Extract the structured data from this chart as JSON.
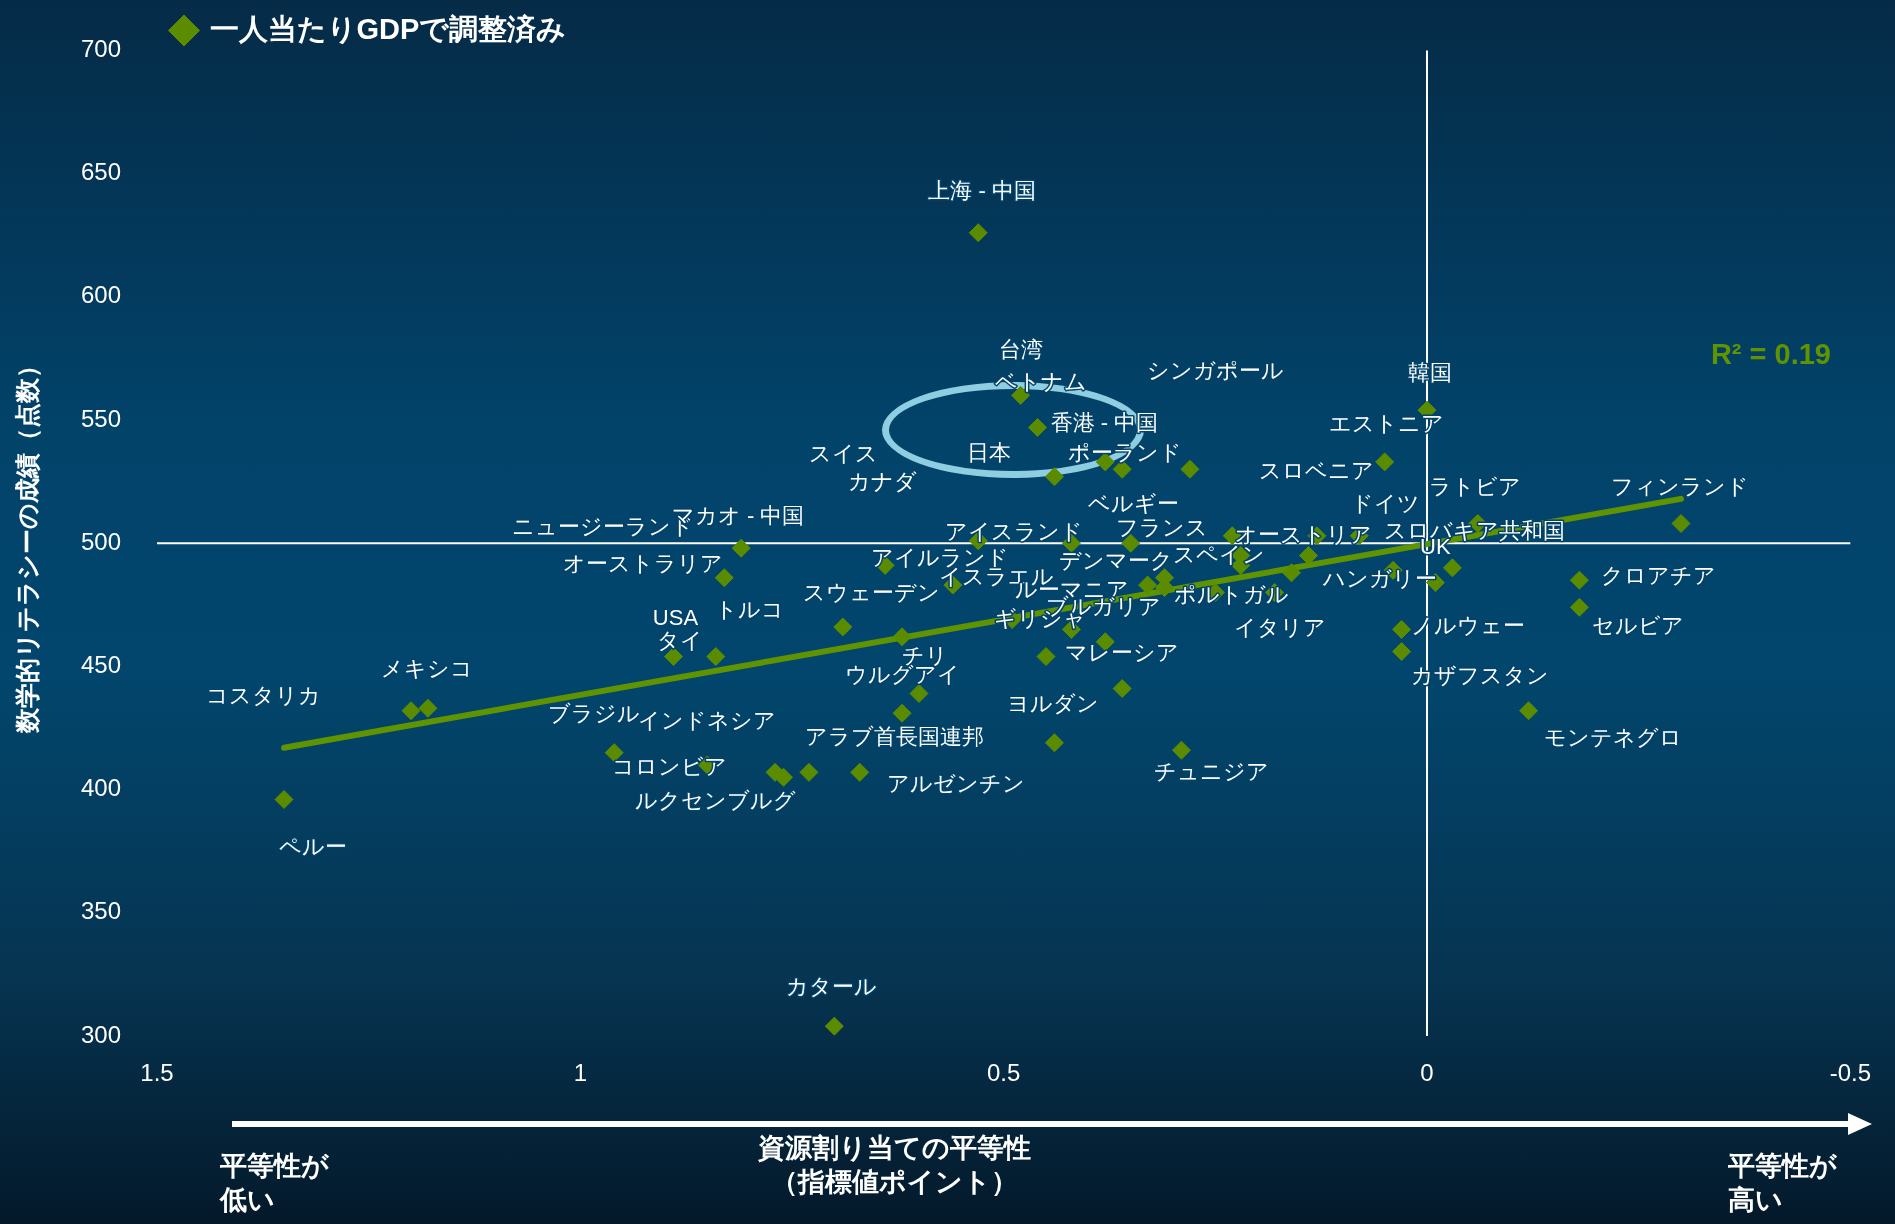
{
  "chart_data": {
    "type": "scatter",
    "ylabel": "数学的リテラシーの成績（点数）",
    "xlabel": "資源割り当ての平等性（指標値ポイント）",
    "xlim": [
      1.5,
      -0.5
    ],
    "xticks": [
      1.5,
      1,
      0.5,
      0,
      -0.5
    ],
    "ylim": [
      300,
      700
    ],
    "yticks": [
      300,
      350,
      400,
      450,
      500,
      550,
      600,
      650,
      700
    ],
    "legend": "top left",
    "marker": "diamond",
    "series": [
      {
        "name": "一人当たりGDPで調整済み",
        "color": "#5b8c00",
        "x": [
          0.53,
          0.48,
          0.46,
          0.44,
          0.38,
          0.36,
          0.28,
          0.0,
          0.05,
          -0.3,
          -0.06,
          0.23,
          0.13,
          0.08,
          0.35,
          0.42,
          0.53,
          0.81,
          0.83,
          0.64,
          0.56,
          0.69,
          0.62,
          0.89,
          0.84,
          1.2,
          1.18,
          1.35,
          0.96,
          0.85,
          0.77,
          0.76,
          0.73,
          0.67,
          0.62,
          0.6,
          0.49,
          0.42,
          0.45,
          0.38,
          0.36,
          0.44,
          0.29,
          0.33,
          0.31,
          0.31,
          0.25,
          0.22,
          0.22,
          0.18,
          0.16,
          0.14,
          0.04,
          -0.01,
          -0.03,
          0.03,
          0.03,
          -0.18,
          -0.18,
          -0.12,
          0.7
        ],
        "values": [
          626,
          560,
          547,
          527,
          533,
          530,
          530,
          554,
          533,
          508,
          508,
          503,
          503,
          503,
          500,
          500,
          501,
          498,
          486,
          491,
          483,
          466,
          462,
          454,
          454,
          432,
          433,
          396,
          415,
          410,
          407,
          405,
          407,
          407,
          431,
          439,
          469,
          465,
          454,
          460,
          441,
          419,
          416,
          483,
          486,
          482,
          480,
          495,
          491,
          480,
          488,
          495,
          489,
          484,
          490,
          465,
          456,
          485,
          474,
          432,
          304
        ]
      },
      {
        "type": "line",
        "marker": "none",
        "color": "#5f9400",
        "x": [
          1.35,
          -0.3
        ],
        "values": [
          417,
          518
        ]
      }
    ],
    "ref_lines": [
      {
        "axis": "x",
        "value": 0,
        "color": "#ffffff"
      },
      {
        "axis": "y",
        "value": 500,
        "color": "#ffffff"
      }
    ],
    "annotations": [
      "R² = 0.19",
      "平等性が低い",
      "平等性が高い",
      {
        "text": "上海 - 中国",
        "x": 0.53,
        "y": 626
      },
      {
        "text": "台湾",
        "x": 0.48,
        "y": 560
      },
      {
        "text": "ベトナム",
        "x": 0.48,
        "y": 560
      },
      "シンガポール",
      {
        "text": "韓国",
        "x": 0.0,
        "y": 554
      },
      {
        "text": "香港 - 中国",
        "x": 0.46,
        "y": 547
      },
      {
        "text": "エストニア",
        "x": 0.0,
        "y": 554
      },
      {
        "text": "日本",
        "x": 0.44,
        "y": 527
      },
      {
        "text": "ポーランド",
        "x": 0.38,
        "y": 533
      },
      "スイス",
      "カナダ",
      {
        "text": "スロベニア",
        "x": 0.05,
        "y": 533
      },
      {
        "text": "ラトビア",
        "x": -0.06,
        "y": 508
      },
      {
        "text": "フィンランド",
        "x": -0.3,
        "y": 508
      },
      {
        "text": "ベルギー",
        "x": 0.28,
        "y": 530
      },
      {
        "text": "ドイツ",
        "x": 0.08,
        "y": 503
      },
      {
        "text": "ニュージーランド",
        "x": 0.81,
        "y": 498
      },
      {
        "text": "マカオ - 中国",
        "x": 0.81,
        "y": 498
      },
      {
        "text": "アイスランド",
        "x": 0.42,
        "y": 500
      },
      {
        "text": "スロバキア共和国",
        "x": -0.06,
        "y": 508
      },
      {
        "text": "アイルランド",
        "x": 0.53,
        "y": 501
      },
      {
        "text": "フランス",
        "x": 0.35,
        "y": 500
      },
      {
        "text": "オーストラリア",
        "x": 0.83,
        "y": 486
      },
      {
        "text": "デンマーク",
        "x": 0.33,
        "y": 483
      },
      {
        "text": "スペイン",
        "x": 0.22,
        "y": 495
      },
      {
        "text": "オーストリア",
        "x": 0.14,
        "y": 495
      },
      {
        "text": "UK",
        "x": -0.03,
        "y": 490
      },
      {
        "text": "ハンガリー",
        "x": -0.01,
        "y": 484
      },
      {
        "text": "イスラエル",
        "x": 0.56,
        "y": 483
      },
      {
        "text": "ルーマニア",
        "x": 0.31,
        "y": 486
      },
      {
        "text": "スウェーデン",
        "x": 0.69,
        "y": 466
      },
      {
        "text": "ブルガリア",
        "x": 0.31,
        "y": 482
      },
      {
        "text": "ポルトガル",
        "x": 0.25,
        "y": 480
      },
      {
        "text": "トルコ",
        "x": 0.84,
        "y": 454
      },
      {
        "text": "USA",
        "x": 0.89,
        "y": 454
      },
      {
        "text": "ギリシャ",
        "x": 0.49,
        "y": 469
      },
      {
        "text": "イタリア",
        "x": 0.18,
        "y": 480
      },
      {
        "text": "ノルウェー",
        "x": 0.03,
        "y": 465
      },
      {
        "text": "クロアチア",
        "x": -0.18,
        "y": 485
      },
      {
        "text": "セルビア",
        "x": -0.18,
        "y": 474
      },
      {
        "text": "タイ",
        "x": 0.89,
        "y": 454
      },
      {
        "text": "チリ",
        "x": 0.62,
        "y": 462
      },
      {
        "text": "マレーシア",
        "x": 0.45,
        "y": 454
      },
      {
        "text": "メキシコ",
        "x": 1.18,
        "y": 433
      },
      {
        "text": "ウルグアイ",
        "x": 0.6,
        "y": 439
      },
      {
        "text": "カザフスタン",
        "x": 0.03,
        "y": 456
      },
      "コスタリカ",
      {
        "text": "ヨルダン",
        "x": 0.44,
        "y": 419
      },
      {
        "text": "ブラジル",
        "x": 0.96,
        "y": 415
      },
      {
        "text": "インドネシア",
        "x": 0.85,
        "y": 410
      },
      {
        "text": "アラブ首長国連邦",
        "x": 0.62,
        "y": 431
      },
      {
        "text": "モンテネグロ",
        "x": -0.12,
        "y": 432
      },
      {
        "text": "コロンビア",
        "x": 0.85,
        "y": 410
      },
      {
        "text": "チュニジア",
        "x": 0.29,
        "y": 416
      },
      {
        "text": "アルゼンチン",
        "x": 0.67,
        "y": 407
      },
      {
        "text": "ルクセンブルグ",
        "x": 0.76,
        "y": 405
      },
      {
        "text": "ペルー",
        "x": 1.35,
        "y": 396
      },
      {
        "text": "カタール",
        "x": 0.7,
        "y": 304
      }
    ]
  }
}
